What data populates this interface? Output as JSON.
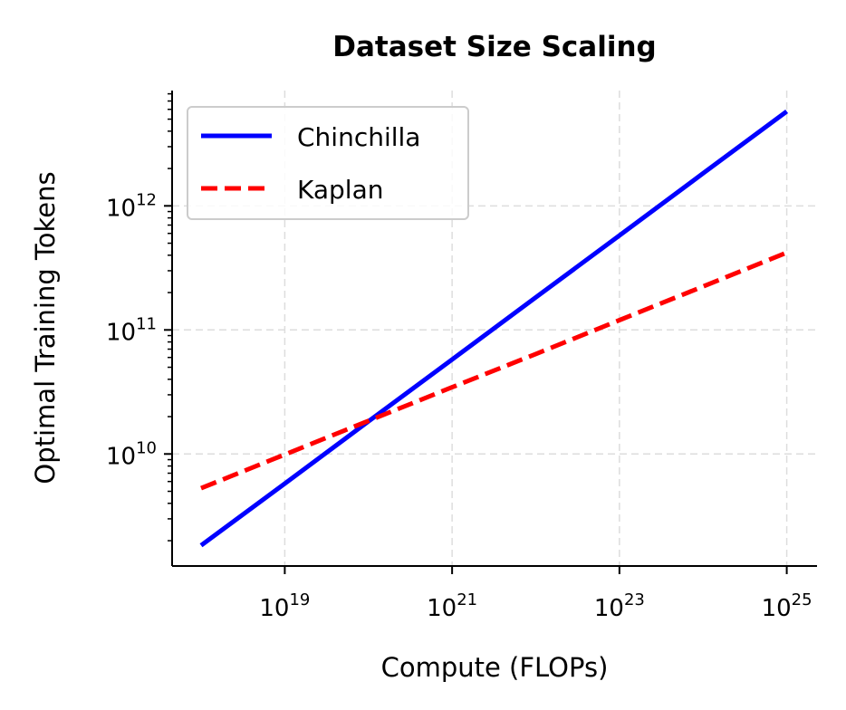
{
  "chart_data": {
    "type": "line",
    "title": "Dataset Size Scaling",
    "xlabel": "Compute (FLOPs)",
    "ylabel": "Optimal Training Tokens",
    "xscale": "log",
    "yscale": "log",
    "xlim": [
      4.5e+17,
      2.3e+25
    ],
    "ylim": [
      1250000000.0,
      8500000000000.0
    ],
    "xticks": [
      {
        "base": "10",
        "exp": "19",
        "value": 1e+19
      },
      {
        "base": "10",
        "exp": "21",
        "value": 1e+21
      },
      {
        "base": "10",
        "exp": "23",
        "value": 1e+23
      },
      {
        "base": "10",
        "exp": "25",
        "value": 1e+25
      }
    ],
    "yticks": [
      {
        "base": "10",
        "exp": "10",
        "value": 10000000000.0
      },
      {
        "base": "10",
        "exp": "11",
        "value": 100000000000.0
      },
      {
        "base": "10",
        "exp": "12",
        "value": 1000000000000.0
      }
    ],
    "grid": true,
    "legend_position": "top-left",
    "x": [
      1e+18,
      1e+19,
      1e+20,
      1e+21,
      1e+22,
      1e+23,
      1e+24,
      1e+25
    ],
    "series": [
      {
        "name": "Chinchilla",
        "color": "#0000ff",
        "style": "solid",
        "values": [
          1830000000.0,
          5770000000.0,
          18300000000.0,
          57700000000.0,
          183000000000.0,
          577000000000.0,
          1830000000000.0,
          5770000000000.0
        ]
      },
      {
        "name": "Kaplan",
        "color": "#ff0000",
        "style": "dashed",
        "values": [
          5300000000.0,
          9900000000.0,
          18500000000.0,
          34500000000.0,
          64000000000.0,
          120000000000.0,
          224000000000.0,
          420000000000.0
        ]
      }
    ]
  }
}
